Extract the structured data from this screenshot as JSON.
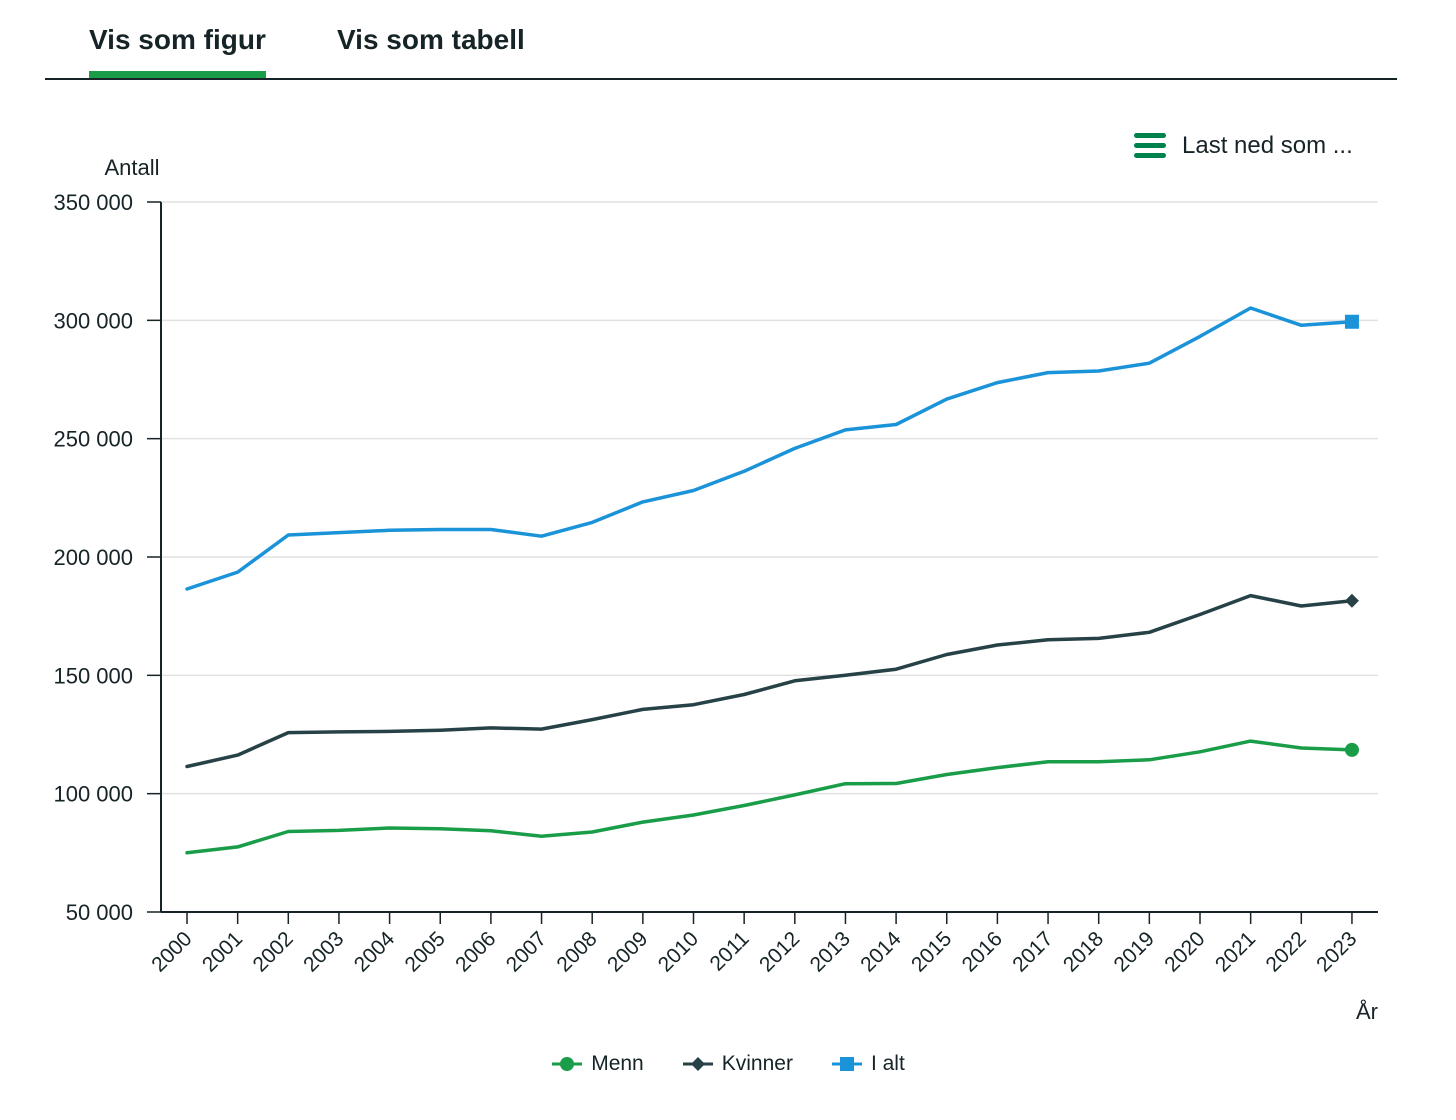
{
  "tabs": [
    {
      "label": "Vis som figur",
      "active": true
    },
    {
      "label": "Vis som tabell",
      "active": false
    }
  ],
  "download": {
    "label": "Last ned som ...",
    "icon": "menu-icon"
  },
  "colors": {
    "accent": "#1a9d49",
    "text": "#162327",
    "grid": "#e1e1e1"
  },
  "chart_data": {
    "type": "line",
    "title": "",
    "ylabel": "Antall",
    "xlabel": "År",
    "ylim": [
      50000,
      350000
    ],
    "yticks": [
      50000,
      100000,
      150000,
      200000,
      250000,
      300000,
      350000
    ],
    "ytick_labels": [
      "50 000",
      "100 000",
      "150 000",
      "200 000",
      "250 000",
      "300 000",
      "350 000"
    ],
    "grid": true,
    "legend_position": "bottom-center",
    "x": [
      "2000",
      "2001",
      "2002",
      "2003",
      "2004",
      "2005",
      "2006",
      "2007",
      "2008",
      "2009",
      "2010",
      "2011",
      "2012",
      "2013",
      "2014",
      "2015",
      "2016",
      "2017",
      "2018",
      "2019",
      "2020",
      "2021",
      "2022",
      "2023"
    ],
    "series": [
      {
        "name": "Menn",
        "color": "#1a9d49",
        "marker": "circle",
        "values": [
          75000,
          77500,
          84000,
          84500,
          85500,
          85200,
          84300,
          82000,
          83800,
          88000,
          91000,
          95000,
          99500,
          104200,
          104300,
          108100,
          111000,
          113500,
          113500,
          114300,
          117700,
          122200,
          119300,
          118500
        ]
      },
      {
        "name": "Kvinner",
        "color": "#274247",
        "marker": "diamond",
        "values": [
          111500,
          116300,
          125800,
          126100,
          126300,
          126800,
          127800,
          127300,
          131300,
          135600,
          137600,
          141900,
          147700,
          150000,
          152600,
          158800,
          162800,
          165000,
          165600,
          168200,
          175700,
          183700,
          179300,
          181500
        ]
      },
      {
        "name": "I alt",
        "color": "#1a93d9",
        "marker": "square",
        "values": [
          186500,
          193600,
          209300,
          210300,
          211300,
          211600,
          211600,
          208800,
          214600,
          223300,
          228100,
          236200,
          245900,
          253700,
          256000,
          266700,
          273700,
          277900,
          278600,
          281900,
          293200,
          305200,
          297900,
          299400
        ]
      }
    ]
  }
}
